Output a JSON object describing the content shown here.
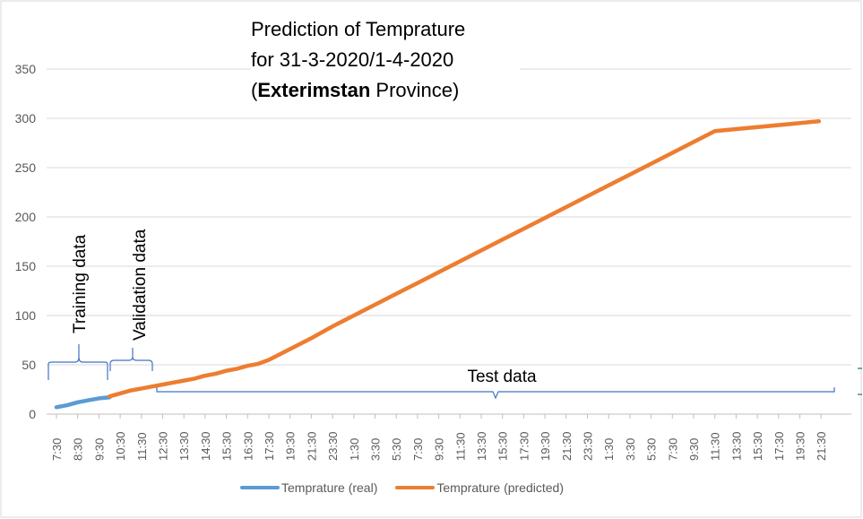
{
  "chart_data": {
    "type": "line",
    "title_lines": [
      "Prediction of Temprature",
      "for 31-3-2020/1-4-2020"
    ],
    "title_bold_part": "Exterimstan",
    "title_line3_prefix": "(",
    "title_line3_suffix": " Province)",
    "ylim": [
      0,
      350
    ],
    "yticks": [
      0,
      50,
      100,
      150,
      200,
      250,
      300,
      350
    ],
    "xticks": [
      "7:30",
      "8:30",
      "9:30",
      "10:30",
      "11:30",
      "12:30",
      "13:30",
      "14:30",
      "15:30",
      "16:30",
      "17:30",
      "19:30",
      "21:30",
      "23:30",
      "1:30",
      "3:30",
      "5:30",
      "7:30",
      "9:30",
      "11:30",
      "13:30",
      "15:30",
      "17:30",
      "19:30",
      "21:30",
      "23:30",
      "1:30",
      "3:30",
      "5:30",
      "7:30",
      "9:30",
      "11:30",
      "13:30",
      "15:30",
      "17:30",
      "19:30",
      "21:30"
    ],
    "grid": true,
    "legend_position": "bottom",
    "series": [
      {
        "name": "Temprature (real)",
        "color": "#5B9BD5",
        "points": [
          [
            0,
            7
          ],
          [
            0.5,
            9
          ],
          [
            1,
            12
          ],
          [
            1.5,
            14
          ],
          [
            2,
            16
          ],
          [
            2.5,
            17
          ]
        ]
      },
      {
        "name": "Temprature (predicted)",
        "color": "#ED7D31",
        "points": [
          [
            2.5,
            18
          ],
          [
            3,
            21
          ],
          [
            3.5,
            24
          ],
          [
            4,
            26
          ],
          [
            4.5,
            28
          ],
          [
            5,
            30
          ],
          [
            5.5,
            32
          ],
          [
            6,
            34
          ],
          [
            6.5,
            36
          ],
          [
            7,
            39
          ],
          [
            7.5,
            41
          ],
          [
            8,
            44
          ],
          [
            8.5,
            46
          ],
          [
            9,
            49
          ],
          [
            9.5,
            51
          ],
          [
            10,
            55
          ],
          [
            11,
            66
          ],
          [
            12,
            77
          ],
          [
            13,
            89
          ],
          [
            14,
            100
          ],
          [
            15,
            111
          ],
          [
            16,
            122
          ],
          [
            17,
            133
          ],
          [
            18,
            144
          ],
          [
            19,
            155
          ],
          [
            20,
            166
          ],
          [
            21,
            177
          ],
          [
            22,
            188
          ],
          [
            23,
            199
          ],
          [
            24,
            210
          ],
          [
            25,
            221
          ],
          [
            26,
            232
          ],
          [
            27,
            243
          ],
          [
            28,
            254
          ],
          [
            29,
            265
          ],
          [
            30,
            276
          ],
          [
            31,
            287
          ],
          [
            35.9,
            297
          ]
        ]
      }
    ],
    "annotations": {
      "training": "Training data",
      "validation": "Validation data",
      "test": "Test data"
    }
  }
}
